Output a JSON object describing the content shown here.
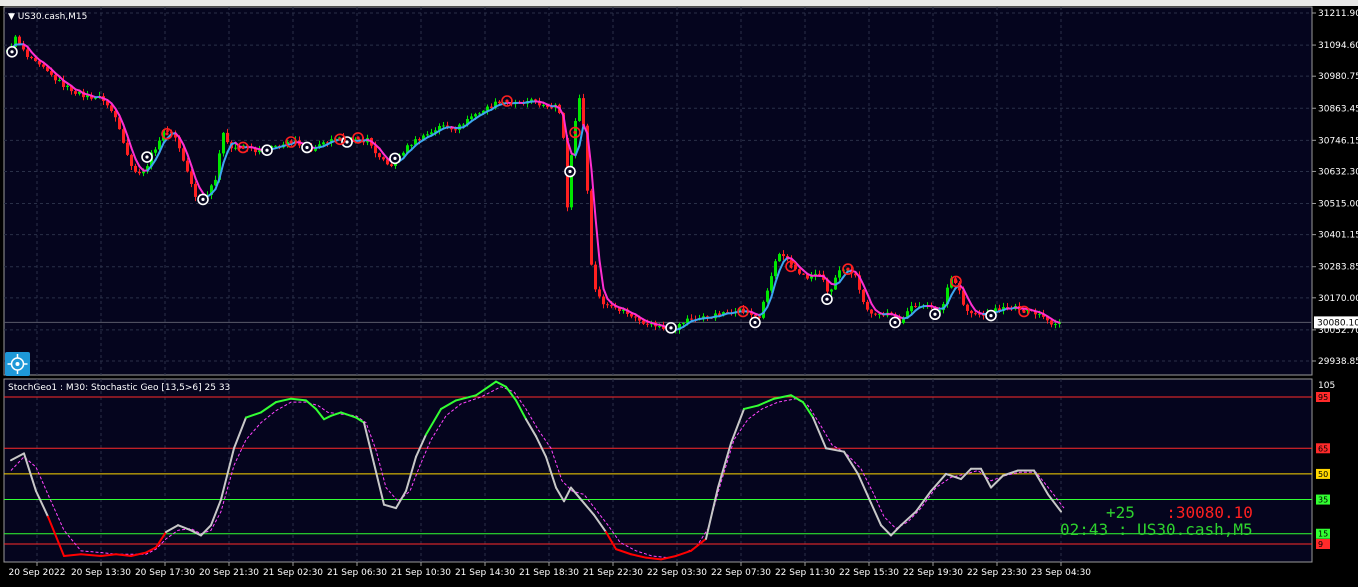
{
  "window": {
    "symbol_label": "US30.cash,M15",
    "indicator_label": "StochGeo1 : M30: Stochastic Geo [13,5>6]  25 33"
  },
  "info": {
    "change": "+25",
    "price_sep": ":",
    "price": "30080.10",
    "timer": "02:43",
    "timer_sep": ":",
    "symbol_tf": "US30.cash,M5"
  },
  "colors": {
    "background": "#000000",
    "plot_bg": "#05051e",
    "grid": "#2a3048",
    "bull": "#00e600",
    "bear": "#ff2020",
    "ma_bull": "#3da6f0",
    "ma_bear": "#ff2fd0",
    "stoch_up": "#33ff33",
    "stoch_down": "#ff0000",
    "stoch_neutral": "#c8c8c8",
    "signal": "#ff44ff",
    "info_green": "#2ed22e",
    "info_red": "#ff2020"
  },
  "chart_data": [
    {
      "type": "candlestick",
      "symbol": "US30.cash",
      "timeframe": "M15",
      "y_ticks": [
        "31211.90",
        "31094.60",
        "30980.75",
        "30863.45",
        "30746.15",
        "30632.30",
        "30515.00",
        "30401.15",
        "30283.85",
        "30170.00",
        "30052.70",
        "29938.85"
      ],
      "ylim": [
        29915,
        31220
      ],
      "current_price": "30080.10",
      "anchors": [
        [
          0,
          31070
        ],
        [
          8,
          31120
        ],
        [
          20,
          31050
        ],
        [
          35,
          31010
        ],
        [
          55,
          30950
        ],
        [
          75,
          30910
        ],
        [
          95,
          30900
        ],
        [
          110,
          30820
        ],
        [
          118,
          30720
        ],
        [
          124,
          30650
        ],
        [
          135,
          30620
        ],
        [
          145,
          30700
        ],
        [
          158,
          30790
        ],
        [
          168,
          30760
        ],
        [
          178,
          30650
        ],
        [
          188,
          30540
        ],
        [
          198,
          30540
        ],
        [
          208,
          30610
        ],
        [
          215,
          30770
        ],
        [
          225,
          30720
        ],
        [
          240,
          30720
        ],
        [
          255,
          30700
        ],
        [
          265,
          30720
        ],
        [
          275,
          30730
        ],
        [
          290,
          30740
        ],
        [
          305,
          30710
        ],
        [
          320,
          30740
        ],
        [
          335,
          30750
        ],
        [
          345,
          30740
        ],
        [
          360,
          30750
        ],
        [
          372,
          30680
        ],
        [
          382,
          30650
        ],
        [
          392,
          30690
        ],
        [
          405,
          30740
        ],
        [
          420,
          30770
        ],
        [
          435,
          30800
        ],
        [
          450,
          30790
        ],
        [
          462,
          30830
        ],
        [
          478,
          30860
        ],
        [
          492,
          30890
        ],
        [
          505,
          30880
        ],
        [
          515,
          30880
        ],
        [
          528,
          30890
        ],
        [
          540,
          30860
        ],
        [
          548,
          30880
        ],
        [
          555,
          30830
        ],
        [
          560,
          30500
        ],
        [
          566,
          30780
        ],
        [
          572,
          30900
        ],
        [
          578,
          30760
        ],
        [
          582,
          30350
        ],
        [
          588,
          30200
        ],
        [
          596,
          30150
        ],
        [
          606,
          30140
        ],
        [
          618,
          30120
        ],
        [
          630,
          30090
        ],
        [
          645,
          30075
        ],
        [
          658,
          30055
        ],
        [
          668,
          30060
        ],
        [
          680,
          30090
        ],
        [
          700,
          30100
        ],
        [
          715,
          30110
        ],
        [
          730,
          30130
        ],
        [
          742,
          30110
        ],
        [
          752,
          30100
        ],
        [
          762,
          30220
        ],
        [
          770,
          30330
        ],
        [
          778,
          30310
        ],
        [
          790,
          30270
        ],
        [
          800,
          30240
        ],
        [
          812,
          30260
        ],
        [
          822,
          30180
        ],
        [
          830,
          30260
        ],
        [
          838,
          30270
        ],
        [
          848,
          30260
        ],
        [
          856,
          30150
        ],
        [
          866,
          30110
        ],
        [
          880,
          30110
        ],
        [
          892,
          30085
        ],
        [
          902,
          30130
        ],
        [
          915,
          30150
        ],
        [
          928,
          30120
        ],
        [
          935,
          30130
        ],
        [
          942,
          30250
        ],
        [
          950,
          30220
        ],
        [
          958,
          30120
        ],
        [
          966,
          30110
        ],
        [
          980,
          30110
        ],
        [
          990,
          30130
        ],
        [
          1005,
          30130
        ],
        [
          1015,
          30135
        ],
        [
          1025,
          30120
        ],
        [
          1035,
          30110
        ],
        [
          1045,
          30075
        ],
        [
          1055,
          30085
        ]
      ],
      "buy_markers": [
        [
          10,
          31070
        ],
        [
          145,
          30685
        ],
        [
          201,
          30530
        ],
        [
          265,
          30710
        ],
        [
          305,
          30720
        ],
        [
          345,
          30740
        ],
        [
          393,
          30680
        ],
        [
          568,
          30632
        ],
        [
          669,
          30060
        ],
        [
          753,
          30080
        ],
        [
          825,
          30165
        ],
        [
          893,
          30080
        ],
        [
          933,
          30110
        ],
        [
          989,
          30105
        ]
      ],
      "sell_markers": [
        [
          165,
          30770
        ],
        [
          241,
          30720
        ],
        [
          289,
          30740
        ],
        [
          338,
          30750
        ],
        [
          356,
          30755
        ],
        [
          505,
          30890
        ],
        [
          573,
          30775
        ],
        [
          741,
          30120
        ],
        [
          789,
          30285
        ],
        [
          846,
          30275
        ],
        [
          954,
          30230
        ],
        [
          1022,
          30120
        ]
      ]
    },
    {
      "type": "line",
      "name": "Stochastic Geo [13,5>6]",
      "timeframe": "M30",
      "params": "25 33",
      "y_tick_top": "105",
      "ylim": [
        0,
        105
      ],
      "levels": [
        {
          "value": 95,
          "label": "95",
          "color": "#ff2a2a"
        },
        {
          "value": 65,
          "label": "65",
          "color": "#ff2a2a"
        },
        {
          "value": 50,
          "label": "50",
          "color": "#ffd700"
        },
        {
          "value": 35,
          "label": "35",
          "color": "#32ff32"
        },
        {
          "value": 15,
          "label": "15",
          "color": "#32ff32"
        },
        {
          "value": 9,
          "label": "9",
          "color": "#ff2a2a"
        }
      ],
      "main_line": [
        [
          5,
          58
        ],
        [
          18,
          62
        ],
        [
          30,
          40
        ],
        [
          42,
          25
        ],
        [
          58,
          2
        ],
        [
          75,
          3
        ],
        [
          95,
          2
        ],
        [
          110,
          3
        ],
        [
          125,
          2
        ],
        [
          140,
          4
        ],
        [
          150,
          7
        ],
        [
          160,
          16
        ],
        [
          172,
          20
        ],
        [
          185,
          17
        ],
        [
          195,
          14
        ],
        [
          205,
          20
        ],
        [
          215,
          35
        ],
        [
          228,
          65
        ],
        [
          240,
          83
        ],
        [
          255,
          86
        ],
        [
          270,
          92
        ],
        [
          285,
          94
        ],
        [
          300,
          93
        ],
        [
          310,
          88
        ],
        [
          318,
          82
        ],
        [
          325,
          84
        ],
        [
          335,
          86
        ],
        [
          350,
          83
        ],
        [
          358,
          80
        ],
        [
          368,
          56
        ],
        [
          378,
          32
        ],
        [
          390,
          30
        ],
        [
          400,
          40
        ],
        [
          410,
          60
        ],
        [
          420,
          73
        ],
        [
          435,
          88
        ],
        [
          450,
          93
        ],
        [
          470,
          96
        ],
        [
          490,
          104
        ],
        [
          500,
          101
        ],
        [
          510,
          93
        ],
        [
          520,
          82
        ],
        [
          530,
          72
        ],
        [
          540,
          60
        ],
        [
          550,
          42
        ],
        [
          558,
          34
        ],
        [
          565,
          42
        ],
        [
          575,
          35
        ],
        [
          588,
          26
        ],
        [
          600,
          16
        ],
        [
          610,
          6
        ],
        [
          625,
          3
        ],
        [
          640,
          1
        ],
        [
          655,
          0
        ],
        [
          670,
          2
        ],
        [
          685,
          5
        ],
        [
          700,
          12
        ],
        [
          712,
          42
        ],
        [
          725,
          68
        ],
        [
          738,
          88
        ],
        [
          752,
          90
        ],
        [
          768,
          94
        ],
        [
          785,
          96
        ],
        [
          797,
          92
        ],
        [
          807,
          83
        ],
        [
          820,
          65
        ],
        [
          838,
          63
        ],
        [
          852,
          50
        ],
        [
          865,
          33
        ],
        [
          875,
          20
        ],
        [
          885,
          14
        ],
        [
          895,
          20
        ],
        [
          910,
          28
        ],
        [
          925,
          40
        ],
        [
          940,
          50
        ],
        [
          955,
          47
        ],
        [
          965,
          53
        ],
        [
          975,
          53
        ],
        [
          985,
          42
        ],
        [
          997,
          49
        ],
        [
          1012,
          52
        ],
        [
          1028,
          52
        ],
        [
          1042,
          38
        ],
        [
          1055,
          28
        ]
      ],
      "signal_line": [
        [
          5,
          52
        ],
        [
          18,
          60
        ],
        [
          30,
          54
        ],
        [
          42,
          38
        ],
        [
          58,
          17
        ],
        [
          75,
          5
        ],
        [
          95,
          4
        ],
        [
          110,
          3
        ],
        [
          125,
          3
        ],
        [
          140,
          3
        ],
        [
          150,
          6
        ],
        [
          160,
          12
        ],
        [
          172,
          17
        ],
        [
          185,
          18
        ],
        [
          195,
          15
        ],
        [
          205,
          17
        ],
        [
          215,
          28
        ],
        [
          228,
          55
        ],
        [
          240,
          70
        ],
        [
          255,
          80
        ],
        [
          270,
          87
        ],
        [
          285,
          92
        ],
        [
          300,
          92
        ],
        [
          312,
          90
        ],
        [
          322,
          86
        ],
        [
          335,
          85
        ],
        [
          350,
          84
        ],
        [
          360,
          80
        ],
        [
          370,
          64
        ],
        [
          380,
          42
        ],
        [
          392,
          34
        ],
        [
          404,
          40
        ],
        [
          414,
          55
        ],
        [
          425,
          70
        ],
        [
          440,
          84
        ],
        [
          455,
          91
        ],
        [
          475,
          95
        ],
        [
          495,
          101
        ],
        [
          508,
          98
        ],
        [
          520,
          88
        ],
        [
          532,
          76
        ],
        [
          545,
          65
        ],
        [
          556,
          46
        ],
        [
          566,
          40
        ],
        [
          578,
          38
        ],
        [
          590,
          29
        ],
        [
          602,
          20
        ],
        [
          614,
          10
        ],
        [
          630,
          5
        ],
        [
          646,
          2
        ],
        [
          662,
          1
        ],
        [
          676,
          3
        ],
        [
          690,
          7
        ],
        [
          702,
          18
        ],
        [
          715,
          45
        ],
        [
          728,
          70
        ],
        [
          742,
          82
        ],
        [
          756,
          88
        ],
        [
          772,
          92
        ],
        [
          790,
          94
        ],
        [
          802,
          90
        ],
        [
          813,
          80
        ],
        [
          826,
          67
        ],
        [
          840,
          62
        ],
        [
          855,
          53
        ],
        [
          868,
          38
        ],
        [
          878,
          25
        ],
        [
          890,
          18
        ],
        [
          902,
          22
        ],
        [
          915,
          30
        ],
        [
          930,
          42
        ],
        [
          945,
          48
        ],
        [
          960,
          50
        ],
        [
          972,
          52
        ],
        [
          985,
          46
        ],
        [
          999,
          49
        ],
        [
          1014,
          51
        ],
        [
          1030,
          51
        ],
        [
          1045,
          40
        ],
        [
          1058,
          30
        ]
      ]
    }
  ],
  "time_axis": {
    "labels": [
      "20 Sep 2022",
      "20 Sep 13:30",
      "20 Sep 17:30",
      "20 Sep 21:30",
      "21 Sep 02:30",
      "21 Sep 06:30",
      "21 Sep 10:30",
      "21 Sep 14:30",
      "21 Sep 18:30",
      "21 Sep 22:30",
      "22 Sep 03:30",
      "22 Sep 07:30",
      "22 Sep 11:30",
      "22 Sep 15:30",
      "22 Sep 19:30",
      "22 Sep 23:30",
      "23 Sep 04:30"
    ]
  }
}
